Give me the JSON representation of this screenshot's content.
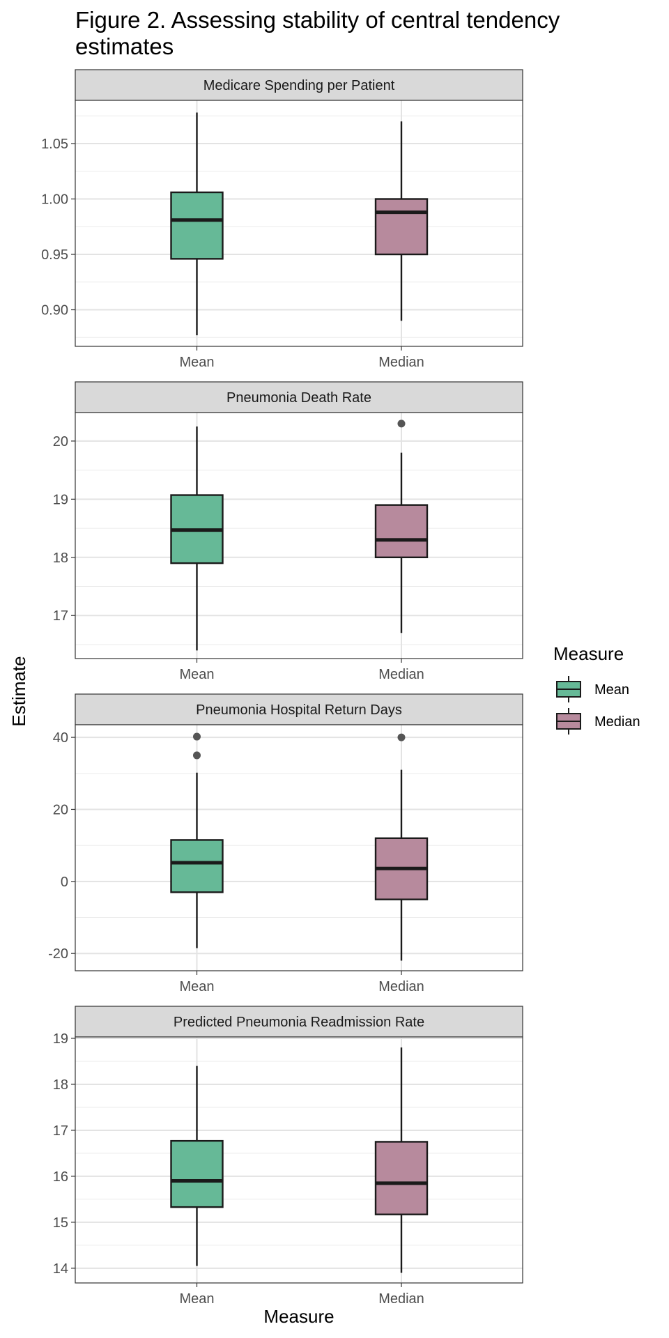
{
  "chart_data": {
    "type": "boxplot",
    "title": "Figure 2. Assessing stability of central tendency estimates",
    "xlabel": "Measure",
    "ylabel": "Estimate",
    "categories": [
      "Mean",
      "Median"
    ],
    "legend": {
      "title": "Measure",
      "placement": "right",
      "entries": [
        {
          "name": "Mean",
          "color": "#66B997"
        },
        {
          "name": "Median",
          "color": "#B78A9D"
        }
      ]
    },
    "grid": true,
    "facets": [
      {
        "title": "Medicare Spending per Patient",
        "ylim": [
          0.867,
          1.089
        ],
        "ticks": [
          0.9,
          0.95,
          1.0,
          1.05
        ],
        "tick_labels": [
          "0.90",
          "0.95",
          "1.00",
          "1.05"
        ],
        "boxes": [
          {
            "category": "Mean",
            "whisker_low": 0.877,
            "q1": 0.946,
            "median": 0.981,
            "q3": 1.006,
            "whisker_high": 1.078,
            "outliers": []
          },
          {
            "category": "Median",
            "whisker_low": 0.89,
            "q1": 0.95,
            "median": 0.988,
            "q3": 1.0,
            "whisker_high": 1.07,
            "outliers": []
          }
        ]
      },
      {
        "title": "Pneumonia Death Rate",
        "ylim": [
          16.26,
          20.49
        ],
        "ticks": [
          17,
          18,
          19,
          20
        ],
        "tick_labels": [
          "17",
          "18",
          "19",
          "20"
        ],
        "boxes": [
          {
            "category": "Mean",
            "whisker_low": 16.4,
            "q1": 17.9,
            "median": 18.47,
            "q3": 19.07,
            "whisker_high": 20.25,
            "outliers": []
          },
          {
            "category": "Median",
            "whisker_low": 16.7,
            "q1": 18.0,
            "median": 18.3,
            "q3": 18.9,
            "whisker_high": 19.8,
            "outliers": [
              20.3
            ]
          }
        ]
      },
      {
        "title": "Pneumonia Hospital Return Days",
        "ylim": [
          -24.8,
          43.5
        ],
        "ticks": [
          -20,
          0,
          20,
          40
        ],
        "tick_labels": [
          "-20",
          "0",
          "20",
          "40"
        ],
        "boxes": [
          {
            "category": "Mean",
            "whisker_low": -18.5,
            "q1": -3.0,
            "median": 5.2,
            "q3": 11.5,
            "whisker_high": 30.2,
            "outliers": [
              35.0,
              40.2
            ]
          },
          {
            "category": "Median",
            "whisker_low": -22.0,
            "q1": -5.0,
            "median": 3.6,
            "q3": 12.0,
            "whisker_high": 31.0,
            "outliers": [
              40.0
            ]
          }
        ]
      },
      {
        "title": "Predicted Pneumonia Readmission Rate",
        "ylim": [
          13.68,
          19.03
        ],
        "ticks": [
          14,
          15,
          16,
          17,
          18,
          19
        ],
        "tick_labels": [
          "14",
          "15",
          "16",
          "17",
          "18",
          "19"
        ],
        "boxes": [
          {
            "category": "Mean",
            "whisker_low": 14.05,
            "q1": 15.33,
            "median": 15.9,
            "q3": 16.77,
            "whisker_high": 18.4,
            "outliers": []
          },
          {
            "category": "Median",
            "whisker_low": 13.9,
            "q1": 15.17,
            "median": 15.85,
            "q3": 16.75,
            "whisker_high": 18.8,
            "outliers": []
          }
        ]
      }
    ]
  }
}
